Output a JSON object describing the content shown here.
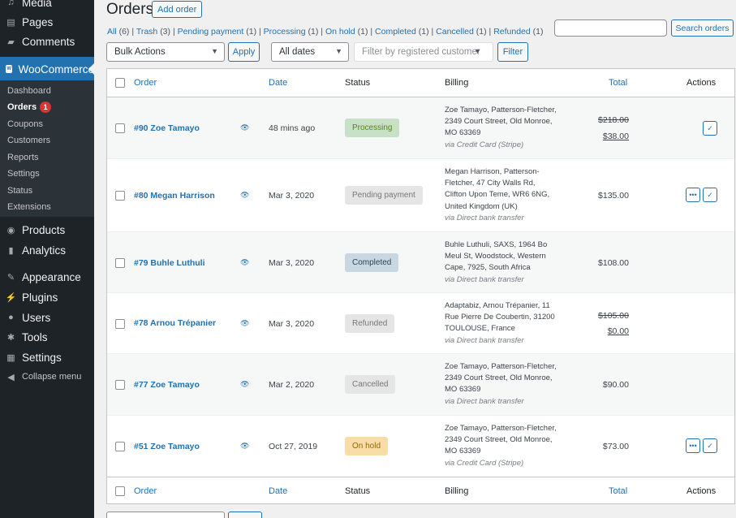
{
  "sidebar": {
    "items": [
      {
        "label": "Media",
        "icon": "media-icon"
      },
      {
        "label": "Pages",
        "icon": "pages-icon"
      },
      {
        "label": "Comments",
        "icon": "comments-icon"
      },
      {
        "label": "WooCommerce",
        "icon": "woocommerce-icon"
      },
      {
        "label": "Products",
        "icon": "products-icon"
      },
      {
        "label": "Analytics",
        "icon": "analytics-icon"
      },
      {
        "label": "Appearance",
        "icon": "appearance-icon"
      },
      {
        "label": "Plugins",
        "icon": "plugins-icon"
      },
      {
        "label": "Users",
        "icon": "users-icon"
      },
      {
        "label": "Tools",
        "icon": "tools-icon"
      },
      {
        "label": "Settings",
        "icon": "settings-icon"
      },
      {
        "label": "Collapse menu",
        "icon": "collapse-icon"
      }
    ],
    "submenu": [
      {
        "label": "Dashboard"
      },
      {
        "label": "Orders",
        "badge": "1"
      },
      {
        "label": "Coupons"
      },
      {
        "label": "Customers"
      },
      {
        "label": "Reports"
      },
      {
        "label": "Settings"
      },
      {
        "label": "Status"
      },
      {
        "label": "Extensions"
      }
    ]
  },
  "header": {
    "title": "Orders",
    "add_label": "Add order"
  },
  "filters": {
    "all": "All",
    "all_count": "(6)",
    "trash": "Trash",
    "trash_count": "(3)",
    "pending": "Pending payment",
    "pending_count": "(1)",
    "processing": "Processing",
    "processing_count": "(1)",
    "onhold": "On hold",
    "onhold_count": "(1)",
    "completed": "Completed",
    "completed_count": "(1)",
    "cancelled": "Cancelled",
    "cancelled_count": "(1)",
    "refunded": "Refunded",
    "refunded_count": "(1)"
  },
  "search": {
    "value": "",
    "button": "Search orders"
  },
  "tablenav": {
    "bulk_actions": "Bulk Actions",
    "apply": "Apply",
    "dates": "All dates",
    "customer_placeholder": "Filter by registered customer",
    "filter": "Filter"
  },
  "columns": {
    "order": "Order",
    "date": "Date",
    "status": "Status",
    "billing": "Billing",
    "total": "Total",
    "actions": "Actions"
  },
  "orders": [
    {
      "id": "#90 Zoe Tamayo",
      "date": "48 mins ago",
      "status": "Processing",
      "billing": [
        "Zoe Tamayo, Patterson-Fletcher,",
        "2349 Court Street, Old Monroe,",
        "MO 63369"
      ],
      "via": "via Credit Card (Stripe)",
      "total_old": "$218.00",
      "total": "$38.00"
    },
    {
      "id": "#80 Megan Harrison",
      "date": "Mar 3, 2020",
      "status": "Pending payment",
      "billing": [
        "Megan Harrison, Patterson-",
        "Fletcher, 47 City Walls Rd,",
        "Clifton Upon Teme, WR6 6NG,",
        "United Kingdom (UK)"
      ],
      "via": "via Direct bank transfer",
      "total": "$135.00"
    },
    {
      "id": "#79 Buhle Luthuli",
      "date": "Mar 3, 2020",
      "status": "Completed",
      "billing": [
        "Buhle Luthuli, SAXS, 1964 Bo",
        "Meul St, Woodstock, Western",
        "Cape, 7925, South Africa"
      ],
      "via": "via Direct bank transfer",
      "total": "$108.00"
    },
    {
      "id": "#78 Arnou Trépanier",
      "date": "Mar 3, 2020",
      "status": "Refunded",
      "billing": [
        "Adaptabiz, Arnou Trépanier, 11",
        "Rue Pierre De Coubertin, 31200",
        "TOULOUSE, France"
      ],
      "via": "via Direct bank transfer",
      "total_old": "$105.00",
      "total": "$0.00"
    },
    {
      "id": "#77 Zoe Tamayo",
      "date": "Mar 2, 2020",
      "status": "Cancelled",
      "billing": [
        "Zoe Tamayo, Patterson-Fletcher,",
        "2349 Court Street, Old Monroe,",
        "MO 63369"
      ],
      "via": "via Direct bank transfer",
      "total": "$90.00"
    },
    {
      "id": "#51 Zoe Tamayo",
      "date": "Oct 27, 2019",
      "status": "On hold",
      "billing": [
        "Zoe Tamayo, Patterson-Fletcher,",
        "2349 Court Street, Old Monroe,",
        "MO 63369"
      ],
      "via": "via Credit Card (Stripe)",
      "total": "$73.00"
    }
  ]
}
